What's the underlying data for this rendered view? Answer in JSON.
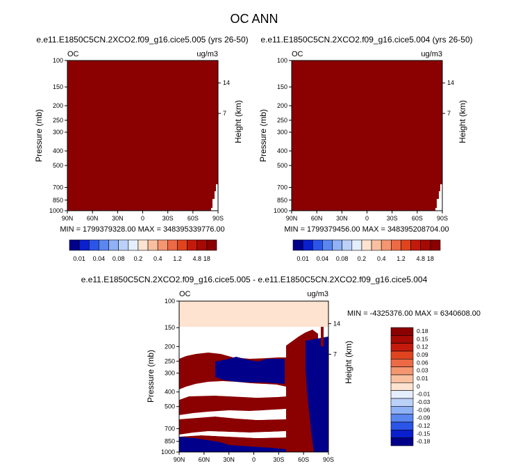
{
  "title": "OC ANN",
  "colors": {
    "background": "#ffffff",
    "field_fill": "#8b0000",
    "diff_top_band": "#fde3d0",
    "diff_blue": "#00008b"
  },
  "chart_data": [
    {
      "type": "heatmap",
      "title": "e.e11.E1850C5CN.2XCO2.f09_g16.cice5.005 (yrs 26-50)",
      "left_label": "OC",
      "right_label": "ug/m3",
      "ylabel": "Pressure (mb)",
      "ylabel_right": "Height (km)",
      "x_ticks": [
        "90N",
        "60N",
        "30N",
        "0",
        "30S",
        "60S",
        "90S"
      ],
      "y_ticks": [
        "100",
        "150",
        "200",
        "250",
        "300",
        "400",
        "500",
        "700",
        "850",
        "1000"
      ],
      "right_ticks": [
        "14",
        "7"
      ],
      "ylim": [
        1000,
        100
      ],
      "y_scale": "log",
      "min_max_text": "MIN = 1799379328.00   MAX = 348395339776.00",
      "colorbar_levels": [
        "0.01",
        "0.04",
        "0.08",
        "0.2",
        "0.4",
        "1.2",
        "4.8",
        "18"
      ],
      "colorbar_colors": [
        "#00008b",
        "#0a1fcf",
        "#2a55e8",
        "#5a86f0",
        "#8fb1f5",
        "#bcd1f8",
        "#e4eefc",
        "#fde3d0",
        "#f9c0a0",
        "#f49670",
        "#ec6a45",
        "#e0441e",
        "#c41a0c",
        "#a50a05",
        "#8b0000"
      ]
    },
    {
      "type": "heatmap",
      "title": "e.e11.E1850C5CN.2XCO2.f09_g16.cice5.004 (yrs 26-50)",
      "left_label": "OC",
      "right_label": "ug/m3",
      "ylabel": "Pressure (mb)",
      "ylabel_right": "Height (km)",
      "x_ticks": [
        "90N",
        "60N",
        "30N",
        "0",
        "30S",
        "60S",
        "90S"
      ],
      "y_ticks": [
        "100",
        "150",
        "200",
        "250",
        "300",
        "400",
        "500",
        "700",
        "850",
        "1000"
      ],
      "right_ticks": [
        "14",
        "7"
      ],
      "ylim": [
        1000,
        100
      ],
      "y_scale": "log",
      "min_max_text": "MIN = 1799379456.00   MAX = 348395208704.00",
      "colorbar_levels": [
        "0.01",
        "0.04",
        "0.08",
        "0.2",
        "0.4",
        "1.2",
        "4.8",
        "18"
      ],
      "colorbar_colors": [
        "#00008b",
        "#0a1fcf",
        "#2a55e8",
        "#5a86f0",
        "#8fb1f5",
        "#bcd1f8",
        "#e4eefc",
        "#fde3d0",
        "#f9c0a0",
        "#f49670",
        "#ec6a45",
        "#e0441e",
        "#c41a0c",
        "#a50a05",
        "#8b0000"
      ]
    },
    {
      "type": "heatmap",
      "title": "e.e11.E1850C5CN.2XCO2.f09_g16.cice5.005 - e.e11.E1850C5CN.2XCO2.f09_g16.cice5.004",
      "left_label": "OC",
      "right_label": "ug/m3",
      "ylabel": "Pressure (mb)",
      "ylabel_right": "Height (km)",
      "x_ticks": [
        "90N",
        "60N",
        "30N",
        "0",
        "30S",
        "60S",
        "90S"
      ],
      "y_ticks": [
        "100",
        "150",
        "200",
        "250",
        "300",
        "400",
        "500",
        "700",
        "850",
        "1000"
      ],
      "right_ticks": [
        "14",
        "7"
      ],
      "ylim": [
        1000,
        100
      ],
      "y_scale": "log",
      "min_max_text": "MIN = -4325376.00   MAX = 6340608.00",
      "colorbar_levels": [
        "0.18",
        "0.15",
        "0.12",
        "0.09",
        "0.06",
        "0.03",
        "0.01",
        "0",
        "-0.01",
        "-0.03",
        "-0.06",
        "-0.09",
        "-0.12",
        "-0.15",
        "-0.18"
      ],
      "colorbar_colors": [
        "#8b0000",
        "#a50a05",
        "#c41a0c",
        "#e0441e",
        "#ec6a45",
        "#f49670",
        "#f9c0a0",
        "#fde3d0",
        "#e4eefc",
        "#bcd1f8",
        "#8fb1f5",
        "#5a86f0",
        "#2a55e8",
        "#0a1fcf",
        "#00008b"
      ]
    }
  ]
}
